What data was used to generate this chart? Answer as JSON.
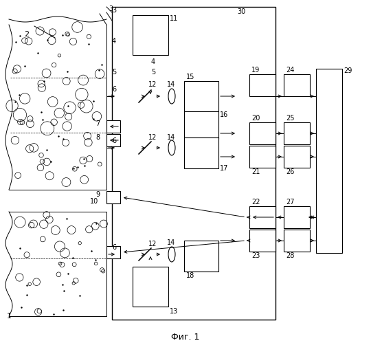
{
  "title": "Фиг. 1",
  "bg_color": "#ffffff",
  "fig_width": 5.4,
  "fig_height": 4.99,
  "dpi": 100
}
